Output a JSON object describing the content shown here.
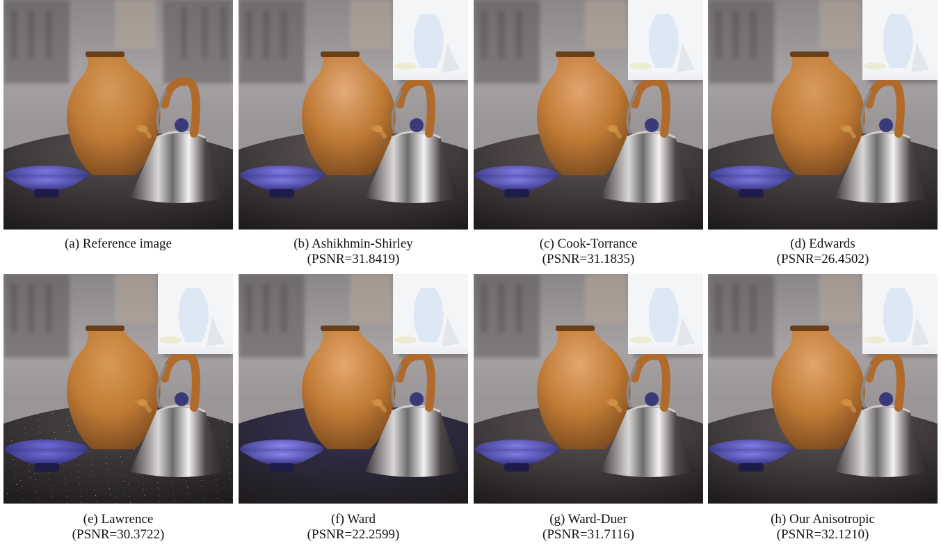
{
  "figure": {
    "panels": [
      {
        "id": "a",
        "caption": "(a) Reference image",
        "psnr": "",
        "has_inset": false,
        "floor": "#4d4546",
        "vase_hi": "#d59a5a",
        "bowl": "#7b78e2",
        "noise": false
      },
      {
        "id": "b",
        "caption": "(b) Ashikhmin-Shirley",
        "psnr": "(PSNR=31.8419)",
        "has_inset": true,
        "floor": "#544a4a",
        "vase_hi": "#e2ab7a",
        "bowl": "#7e7be6",
        "noise": false
      },
      {
        "id": "c",
        "caption": "(c) Cook-Torrance",
        "psnr": "(PSNR=31.1835)",
        "has_inset": true,
        "floor": "#574c4c",
        "vase_hi": "#e2a46e",
        "bowl": "#7f7ce6",
        "noise": false
      },
      {
        "id": "d",
        "caption": "(d) Edwards",
        "psnr": "(PSNR=26.4502)",
        "has_inset": true,
        "floor": "#4f4747",
        "vase_hi": "#d89a5e",
        "bowl": "#7a77e0",
        "noise": false
      },
      {
        "id": "e",
        "caption": "(e) Lawrence",
        "psnr": "(PSNR=30.3722)",
        "has_inset": true,
        "floor": "#3d3939",
        "vase_hi": "#d79a55",
        "bowl": "#6d6ad8",
        "noise": true
      },
      {
        "id": "f",
        "caption": "(f) Ward",
        "psnr": "(PSNR=22.2599)",
        "has_inset": true,
        "floor": "#27234a",
        "vase_hi": "#e6a86e",
        "bowl": "#8985f0",
        "noise": false
      },
      {
        "id": "g",
        "caption": "(g) Ward-Duer",
        "psnr": "(PSNR=31.7116)",
        "has_inset": true,
        "floor": "#554b4b",
        "vase_hi": "#e3a76e",
        "bowl": "#7e7be6",
        "noise": false
      },
      {
        "id": "h",
        "caption": "(h) Our Anisotropic",
        "psnr": "(PSNR=32.1210)",
        "has_inset": true,
        "floor": "#554b4b",
        "vase_hi": "#e2a56c",
        "bowl": "#7e7be6",
        "noise": false
      }
    ]
  }
}
